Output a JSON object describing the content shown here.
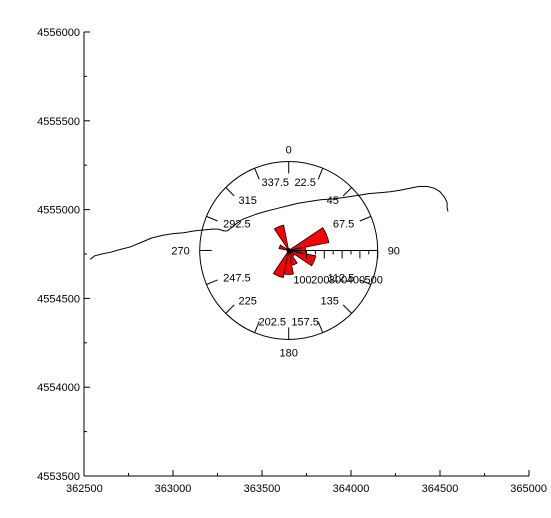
{
  "chart_data": {
    "type": "rose",
    "title": "",
    "xlabel": "",
    "ylabel": "",
    "map_axes": {
      "x_ticks": [
        362500,
        363000,
        363500,
        364000,
        364500,
        365000
      ],
      "x_tick_labels": [
        "362500",
        "363000",
        "363500",
        "364000",
        "364500",
        "365000"
      ],
      "y_ticks": [
        4553500,
        4554000,
        4554500,
        4555000,
        4555500,
        4556000
      ],
      "y_tick_labels": [
        "4553500",
        "4554000",
        "4554500",
        "4555000",
        "4555500",
        "4556000"
      ],
      "xlim": [
        362500,
        365000
      ],
      "ylim": [
        4553500,
        4556000
      ]
    },
    "rose": {
      "center": [
        363650,
        4554770
      ],
      "radius": 500,
      "direction_labels": [
        "0",
        "22.5",
        "45",
        "67.5",
        "90",
        "112.5",
        "135",
        "157.5",
        "180",
        "202.5",
        "225",
        "247.5",
        "270",
        "292.5",
        "315",
        "337.5"
      ],
      "direction_values": [
        0,
        22.5,
        45,
        67.5,
        90,
        112.5,
        135,
        157.5,
        180,
        202.5,
        225,
        247.5,
        270,
        292.5,
        315,
        337.5
      ],
      "radial_ticks": [
        100,
        200,
        300,
        400,
        500
      ],
      "radial_tick_labels": [
        "100",
        "200",
        "300",
        "400",
        "500"
      ],
      "petal_width_deg": 22.5,
      "petal_color": "#ff0000",
      "petals": [
        {
          "direction": 0,
          "value": 10
        },
        {
          "direction": 22.5,
          "value": 10
        },
        {
          "direction": 45,
          "value": 10
        },
        {
          "direction": 67.5,
          "value": 230
        },
        {
          "direction": 90,
          "value": 95
        },
        {
          "direction": 112.5,
          "value": 155
        },
        {
          "direction": 135,
          "value": 40
        },
        {
          "direction": 157.5,
          "value": 85
        },
        {
          "direction": 180,
          "value": 135
        },
        {
          "direction": 202.5,
          "value": 155
        },
        {
          "direction": 225,
          "value": 10
        },
        {
          "direction": 247.5,
          "value": 10
        },
        {
          "direction": 270,
          "value": 10
        },
        {
          "direction": 292.5,
          "value": 55
        },
        {
          "direction": 315,
          "value": 15
        },
        {
          "direction": 337.5,
          "value": 145
        }
      ]
    },
    "coastline": [
      [
        362535,
        4554720
      ],
      [
        362560,
        4554740
      ],
      [
        362600,
        4554750
      ],
      [
        362650,
        4554760
      ],
      [
        362700,
        4554775
      ],
      [
        362760,
        4554790
      ],
      [
        362820,
        4554815
      ],
      [
        362880,
        4554840
      ],
      [
        362940,
        4554855
      ],
      [
        363000,
        4554865
      ],
      [
        363060,
        4554870
      ],
      [
        363120,
        4554880
      ],
      [
        363170,
        4554885
      ],
      [
        363220,
        4554890
      ],
      [
        363255,
        4554890
      ],
      [
        363285,
        4554880
      ],
      [
        363305,
        4554880
      ],
      [
        363325,
        4554895
      ],
      [
        363355,
        4554920
      ],
      [
        363390,
        4554945
      ],
      [
        363430,
        4554960
      ],
      [
        363470,
        4554975
      ],
      [
        363520,
        4554990
      ],
      [
        363580,
        4555005
      ],
      [
        363640,
        4555020
      ],
      [
        363700,
        4555035
      ],
      [
        363760,
        4555045
      ],
      [
        363830,
        4555055
      ],
      [
        363900,
        4555060
      ],
      [
        363970,
        4555070
      ],
      [
        364040,
        4555080
      ],
      [
        364100,
        4555090
      ],
      [
        364160,
        4555095
      ],
      [
        364220,
        4555100
      ],
      [
        364280,
        4555110
      ],
      [
        364330,
        4555120
      ],
      [
        364380,
        4555130
      ],
      [
        364430,
        4555130
      ],
      [
        364470,
        4555120
      ],
      [
        364500,
        4555100
      ],
      [
        364525,
        4555070
      ],
      [
        364540,
        4555040
      ],
      [
        364540,
        4555010
      ],
      [
        364545,
        4554990
      ]
    ]
  }
}
